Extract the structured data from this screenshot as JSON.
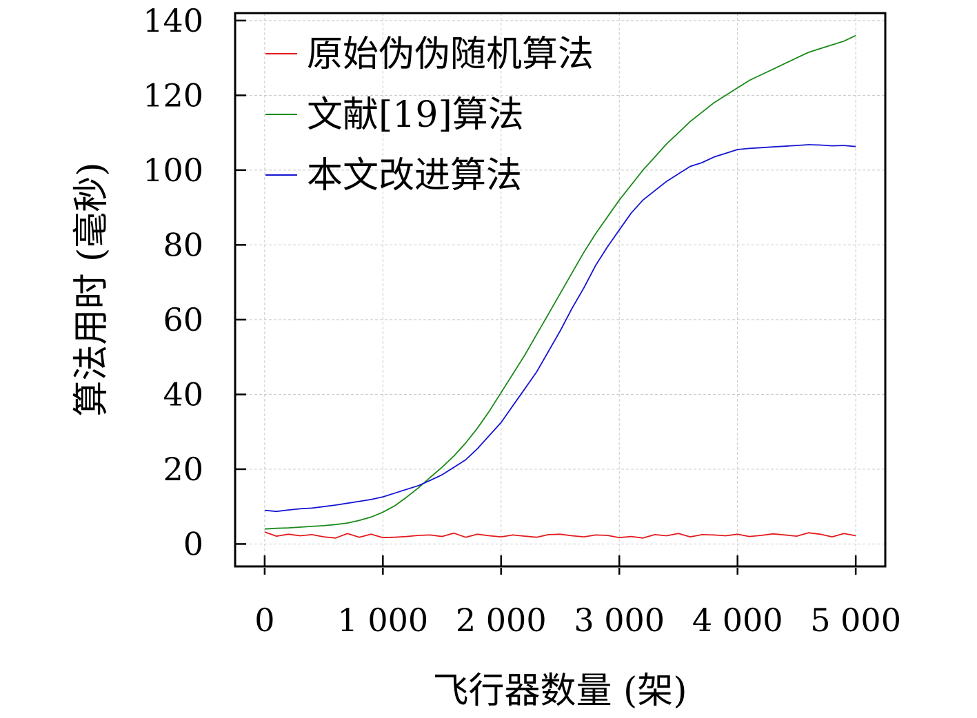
{
  "chart_data": {
    "type": "line",
    "title": "",
    "xlabel": "飞行器数量 (架)",
    "ylabel": "算法用时 (毫秒)",
    "xlim": [
      -250,
      5250
    ],
    "ylim": [
      -6,
      142
    ],
    "x_ticks": [
      0,
      1000,
      2000,
      3000,
      4000,
      5000
    ],
    "x_tick_labels": [
      "0",
      "1 000",
      "2 000",
      "3 000",
      "4 000",
      "5 000"
    ],
    "y_ticks": [
      0,
      20,
      40,
      60,
      80,
      100,
      120,
      140
    ],
    "y_tick_labels": [
      "0",
      "20",
      "40",
      "60",
      "80",
      "100",
      "120",
      "140"
    ],
    "grid": true,
    "legend_position": "top-left",
    "series": [
      {
        "name": "原始伪伪随机算法",
        "color": "#e41a1c",
        "x": [
          0,
          100,
          200,
          300,
          400,
          500,
          600,
          700,
          800,
          900,
          1000,
          1100,
          1200,
          1300,
          1400,
          1500,
          1600,
          1700,
          1800,
          1900,
          2000,
          2100,
          2200,
          2300,
          2400,
          2500,
          2600,
          2700,
          2800,
          2900,
          3000,
          3100,
          3200,
          3300,
          3400,
          3500,
          3600,
          3700,
          3800,
          3900,
          4000,
          4100,
          4200,
          4300,
          4400,
          4500,
          4600,
          4700,
          4800,
          4900,
          5000
        ],
        "y": [
          3.2,
          2.1,
          2.6,
          2.2,
          2.5,
          1.9,
          1.6,
          2.8,
          1.8,
          2.6,
          1.7,
          1.8,
          2.0,
          2.3,
          2.4,
          2.0,
          2.9,
          1.8,
          2.6,
          2.2,
          1.9,
          2.4,
          2.1,
          1.8,
          2.5,
          2.6,
          2.2,
          1.9,
          2.4,
          2.3,
          1.7,
          2.0,
          1.6,
          2.5,
          2.2,
          2.8,
          1.9,
          2.5,
          2.4,
          2.2,
          2.6,
          2.0,
          2.3,
          2.7,
          2.4,
          2.1,
          3.0,
          2.6,
          1.9,
          2.8,
          2.2
        ]
      },
      {
        "name": "文献[19]算法",
        "color": "#1a8a1a",
        "x": [
          0,
          100,
          200,
          300,
          400,
          500,
          600,
          700,
          800,
          900,
          1000,
          1100,
          1200,
          1300,
          1400,
          1500,
          1600,
          1700,
          1800,
          1900,
          2000,
          2100,
          2200,
          2300,
          2400,
          2500,
          2600,
          2700,
          2800,
          2900,
          3000,
          3100,
          3200,
          3300,
          3400,
          3500,
          3600,
          3700,
          3800,
          3900,
          4000,
          4100,
          4200,
          4300,
          4400,
          4500,
          4600,
          4700,
          4800,
          4900,
          5000
        ],
        "y": [
          4.0,
          4.2,
          4.3,
          4.5,
          4.7,
          4.9,
          5.2,
          5.6,
          6.3,
          7.2,
          8.5,
          10.2,
          12.5,
          15.0,
          17.8,
          20.5,
          23.5,
          27.0,
          31.0,
          35.5,
          40.5,
          45.5,
          50.5,
          56.0,
          61.5,
          67.0,
          72.5,
          78.0,
          83.0,
          87.5,
          92.0,
          96.0,
          100.0,
          103.5,
          107.0,
          110.0,
          113.0,
          115.5,
          118.0,
          120.0,
          122.0,
          124.0,
          125.5,
          127.0,
          128.5,
          130.0,
          131.5,
          132.5,
          133.5,
          134.5,
          136.0
        ]
      },
      {
        "name": "本文改进算法",
        "color": "#1414d4",
        "x": [
          0,
          100,
          200,
          300,
          400,
          500,
          600,
          700,
          800,
          900,
          1000,
          1100,
          1200,
          1300,
          1400,
          1500,
          1600,
          1700,
          1800,
          1900,
          2000,
          2100,
          2200,
          2300,
          2400,
          2500,
          2600,
          2700,
          2800,
          2900,
          3000,
          3100,
          3200,
          3300,
          3400,
          3500,
          3600,
          3700,
          3800,
          3900,
          4000,
          4100,
          4200,
          4300,
          4400,
          4500,
          4600,
          4700,
          4800,
          4900,
          5000
        ],
        "y": [
          9.0,
          8.7,
          9.1,
          9.4,
          9.6,
          10.0,
          10.4,
          10.9,
          11.4,
          11.9,
          12.6,
          13.6,
          14.6,
          15.6,
          17.0,
          18.5,
          20.5,
          22.5,
          25.5,
          29.0,
          32.5,
          37.0,
          41.5,
          46.0,
          51.5,
          57.0,
          63.0,
          68.5,
          74.5,
          79.5,
          84.0,
          88.5,
          92.0,
          94.5,
          97.0,
          99.0,
          101.0,
          102.0,
          103.5,
          104.5,
          105.5,
          105.8,
          106.0,
          106.2,
          106.4,
          106.6,
          106.8,
          106.7,
          106.5,
          106.6,
          106.3
        ]
      }
    ]
  }
}
